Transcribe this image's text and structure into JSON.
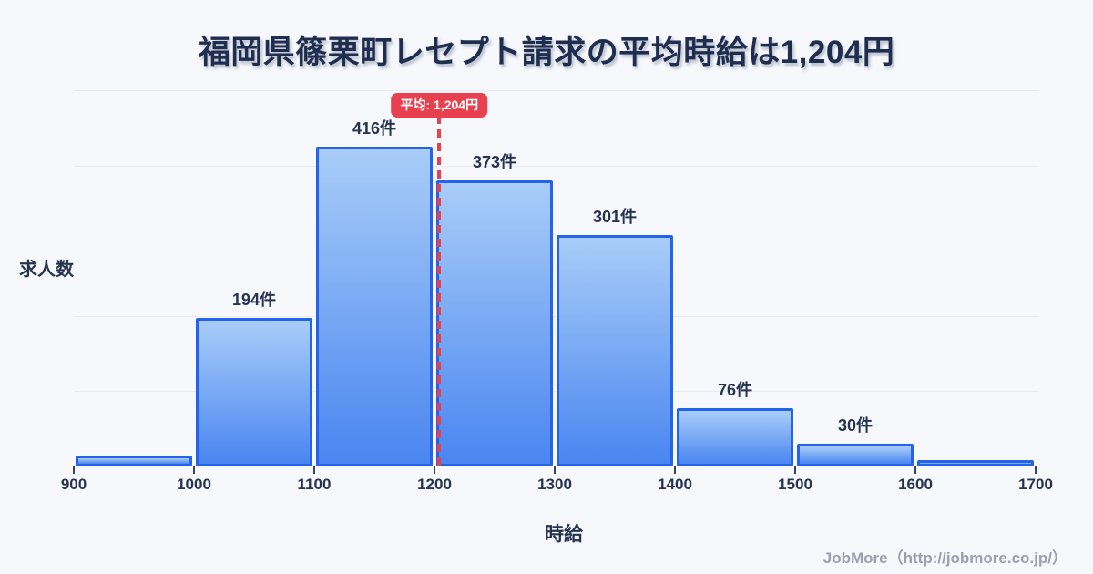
{
  "page": {
    "background": "#f7f8fc",
    "footer": "JobMore（http://jobmore.co.jp/）"
  },
  "chart_data": {
    "type": "bar",
    "title": "福岡県篠栗町レセプト請求の平均時給は1,204円",
    "xlabel": "時給",
    "ylabel": "求人数",
    "x_ticks": [
      "900",
      "1000",
      "1100",
      "1200",
      "1300",
      "1400",
      "1500",
      "1600",
      "1700"
    ],
    "bins": [
      {
        "range": [
          900,
          1000
        ],
        "value": 14,
        "label": ""
      },
      {
        "range": [
          1000,
          1100
        ],
        "value": 194,
        "label": "194件"
      },
      {
        "range": [
          1100,
          1200
        ],
        "value": 416,
        "label": "416件"
      },
      {
        "range": [
          1200,
          1300
        ],
        "value": 373,
        "label": "373件"
      },
      {
        "range": [
          1300,
          1400
        ],
        "value": 301,
        "label": "301件"
      },
      {
        "range": [
          1400,
          1500
        ],
        "value": 76,
        "label": "76件"
      },
      {
        "range": [
          1500,
          1600
        ],
        "value": 30,
        "label": "30件"
      },
      {
        "range": [
          1600,
          1700
        ],
        "value": 8,
        "label": ""
      }
    ],
    "ylim": [
      0,
      490
    ],
    "grid": true,
    "gridline_count": 5,
    "legend": "none",
    "average": {
      "value": 1204,
      "label": "平均: 1,204円"
    },
    "colors": {
      "background": "#f7f8fc",
      "bar_fill_top": "#a9cdf8",
      "bar_fill_bottom": "#4a86f1",
      "bar_border": "#2563eb",
      "gridline": "#e8ebf2",
      "text": "#273350",
      "title": "#1f2d4e",
      "average_red": "#e8404e",
      "footer_gray": "#9ba1ac"
    }
  }
}
